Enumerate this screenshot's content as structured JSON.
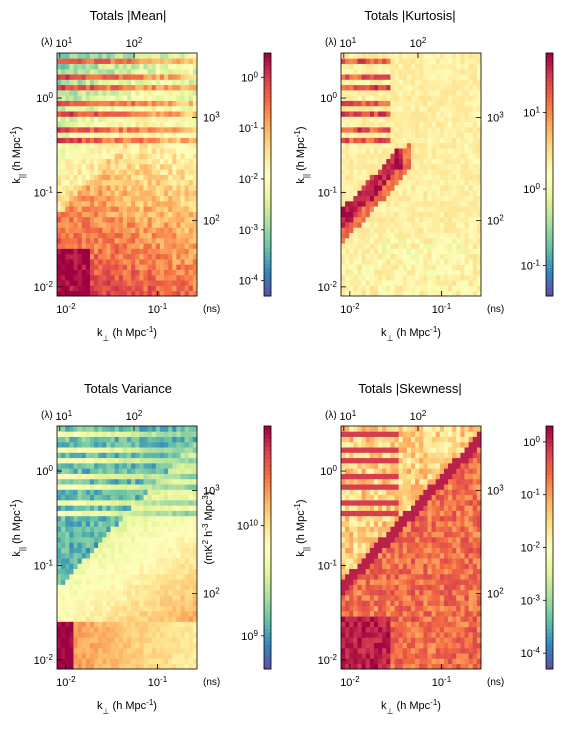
{
  "figure": {
    "colormap": "spectral",
    "colormap_stops": [
      "#5e4fa2",
      "#3288bd",
      "#66c2a5",
      "#abdda4",
      "#e6f598",
      "#ffffbf",
      "#fee08b",
      "#fdae61",
      "#f46d43",
      "#d53e4f",
      "#9e0142"
    ]
  },
  "chart_data": [
    {
      "type": "heatmap",
      "title": "Totals |Mean|",
      "xlabel": "k",
      "xlabel_sub": "⊥",
      "xlabel_unit": " (h Mpc",
      "xlabel_exp": "-1",
      "ylabel": "k",
      "ylabel_sub": "||",
      "ylabel_unit": " (h Mpc",
      "ylabel_exp": "-1",
      "x_scale": "log",
      "y_scale": "log",
      "xlim": [
        0.008,
        0.27
      ],
      "ylim": [
        0.008,
        3.0
      ],
      "x_ticks": [
        {
          "v": 0.01,
          "b": "10",
          "e": "-2"
        },
        {
          "v": 0.1,
          "b": "10",
          "e": "-1"
        }
      ],
      "y_ticks": [
        {
          "v": 0.01,
          "b": "10",
          "e": "-2"
        },
        {
          "v": 0.1,
          "b": "10",
          "e": "-1"
        },
        {
          "v": 1,
          "b": "10",
          "e": "0"
        }
      ],
      "top_axis_label": "(λ)",
      "top_ticks": [
        {
          "f": 0.02,
          "b": "10",
          "e": "1"
        },
        {
          "f": 0.55,
          "b": "10",
          "e": "2"
        }
      ],
      "right_axis_label": "(ns)",
      "right_ticks": [
        {
          "f": 0.735,
          "b": "10",
          "e": "3"
        },
        {
          "f": 0.31,
          "b": "10",
          "e": "2"
        }
      ],
      "colorbar": {
        "scale": "log",
        "range": [
          5e-05,
          3.0
        ],
        "label": "",
        "label_exp": "",
        "label_tail": "",
        "ticks": [
          {
            "v": 0.0001,
            "b": "10",
            "e": "-4"
          },
          {
            "v": 0.001,
            "b": "10",
            "e": "-3"
          },
          {
            "v": 0.01,
            "b": "10",
            "e": "-2"
          },
          {
            "v": 0.1,
            "b": "10",
            "e": "-1"
          },
          {
            "v": 1,
            "b": "10",
            "e": "0"
          }
        ]
      },
      "pattern": "mean"
    },
    {
      "type": "heatmap",
      "title": "Totals |Kurtosis|",
      "xlabel": "k",
      "xlabel_sub": "⊥",
      "xlabel_unit": " (h Mpc",
      "xlabel_exp": "-1",
      "ylabel": "k",
      "ylabel_sub": "||",
      "ylabel_unit": " (h Mpc",
      "ylabel_exp": "-1",
      "x_scale": "log",
      "y_scale": "log",
      "xlim": [
        0.008,
        0.27
      ],
      "ylim": [
        0.008,
        3.0
      ],
      "x_ticks": [
        {
          "v": 0.01,
          "b": "10",
          "e": "-2"
        },
        {
          "v": 0.1,
          "b": "10",
          "e": "-1"
        }
      ],
      "y_ticks": [
        {
          "v": 0.01,
          "b": "10",
          "e": "-2"
        },
        {
          "v": 0.1,
          "b": "10",
          "e": "-1"
        },
        {
          "v": 1,
          "b": "10",
          "e": "0"
        }
      ],
      "top_axis_label": "(λ)",
      "top_ticks": [
        {
          "f": 0.02,
          "b": "10",
          "e": "1"
        },
        {
          "f": 0.55,
          "b": "10",
          "e": "2"
        }
      ],
      "right_axis_label": "(ns)",
      "right_ticks": [
        {
          "f": 0.735,
          "b": "10",
          "e": "3"
        },
        {
          "f": 0.31,
          "b": "10",
          "e": "2"
        }
      ],
      "colorbar": {
        "scale": "log",
        "range": [
          0.04,
          60
        ],
        "label": "",
        "label_exp": "",
        "label_tail": "",
        "ticks": [
          {
            "v": 0.1,
            "b": "10",
            "e": "-1"
          },
          {
            "v": 1,
            "b": "10",
            "e": "0"
          },
          {
            "v": 10,
            "b": "10",
            "e": "1"
          }
        ]
      },
      "pattern": "kurtosis"
    },
    {
      "type": "heatmap",
      "title": "Totals Variance",
      "xlabel": "k",
      "xlabel_sub": "⊥",
      "xlabel_unit": " (h Mpc",
      "xlabel_exp": "-1",
      "ylabel": "k",
      "ylabel_sub": "||",
      "ylabel_unit": " (h Mpc",
      "ylabel_exp": "-1",
      "x_scale": "log",
      "y_scale": "log",
      "xlim": [
        0.008,
        0.27
      ],
      "ylim": [
        0.008,
        3.0
      ],
      "x_ticks": [
        {
          "v": 0.01,
          "b": "10",
          "e": "-2"
        },
        {
          "v": 0.1,
          "b": "10",
          "e": "-1"
        }
      ],
      "y_ticks": [
        {
          "v": 0.01,
          "b": "10",
          "e": "-2"
        },
        {
          "v": 0.1,
          "b": "10",
          "e": "-1"
        },
        {
          "v": 1,
          "b": "10",
          "e": "0"
        }
      ],
      "top_axis_label": "(λ)",
      "top_ticks": [
        {
          "f": 0.02,
          "b": "10",
          "e": "1"
        },
        {
          "f": 0.55,
          "b": "10",
          "e": "2"
        }
      ],
      "right_axis_label": "(ns)",
      "right_ticks": [
        {
          "f": 0.735,
          "b": "10",
          "e": "3"
        },
        {
          "f": 0.31,
          "b": "10",
          "e": "2"
        }
      ],
      "colorbar": {
        "scale": "log",
        "range": [
          500000000,
          80000000000
        ],
        "label": "(mK",
        "label_exp": "2",
        "label_tail": " h",
        "label_exp2": "-3",
        "label_tail2": " Mpc",
        "label_exp3": "3",
        "label_tail3": ")",
        "ticks": [
          {
            "v": 1000000000,
            "b": "10",
            "e": "9"
          },
          {
            "v": 10000000000,
            "b": "10",
            "e": "10"
          }
        ]
      },
      "pattern": "variance"
    },
    {
      "type": "heatmap",
      "title": "Totals |Skewness|",
      "xlabel": "k",
      "xlabel_sub": "⊥",
      "xlabel_unit": " (h Mpc",
      "xlabel_exp": "-1",
      "ylabel": "k",
      "ylabel_sub": "||",
      "ylabel_unit": " (h Mpc",
      "ylabel_exp": "-1",
      "x_scale": "log",
      "y_scale": "log",
      "xlim": [
        0.008,
        0.27
      ],
      "ylim": [
        0.008,
        3.0
      ],
      "x_ticks": [
        {
          "v": 0.01,
          "b": "10",
          "e": "-2"
        },
        {
          "v": 0.1,
          "b": "10",
          "e": "-1"
        }
      ],
      "y_ticks": [
        {
          "v": 0.01,
          "b": "10",
          "e": "-2"
        },
        {
          "v": 0.1,
          "b": "10",
          "e": "-1"
        },
        {
          "v": 1,
          "b": "10",
          "e": "0"
        }
      ],
      "top_axis_label": "(λ)",
      "top_ticks": [
        {
          "f": 0.02,
          "b": "10",
          "e": "1"
        },
        {
          "f": 0.55,
          "b": "10",
          "e": "2"
        }
      ],
      "right_axis_label": "(ns)",
      "right_ticks": [
        {
          "f": 0.735,
          "b": "10",
          "e": "3"
        },
        {
          "f": 0.31,
          "b": "10",
          "e": "2"
        }
      ],
      "colorbar": {
        "scale": "log",
        "range": [
          5e-05,
          2.0
        ],
        "label": "",
        "label_exp": "",
        "label_tail": "",
        "ticks": [
          {
            "v": 0.0001,
            "b": "10",
            "e": "-4"
          },
          {
            "v": 0.001,
            "b": "10",
            "e": "-3"
          },
          {
            "v": 0.01,
            "b": "10",
            "e": "-2"
          },
          {
            "v": 0.1,
            "b": "10",
            "e": "-1"
          },
          {
            "v": 1,
            "b": "10",
            "e": "0"
          }
        ]
      },
      "pattern": "skewness"
    }
  ]
}
